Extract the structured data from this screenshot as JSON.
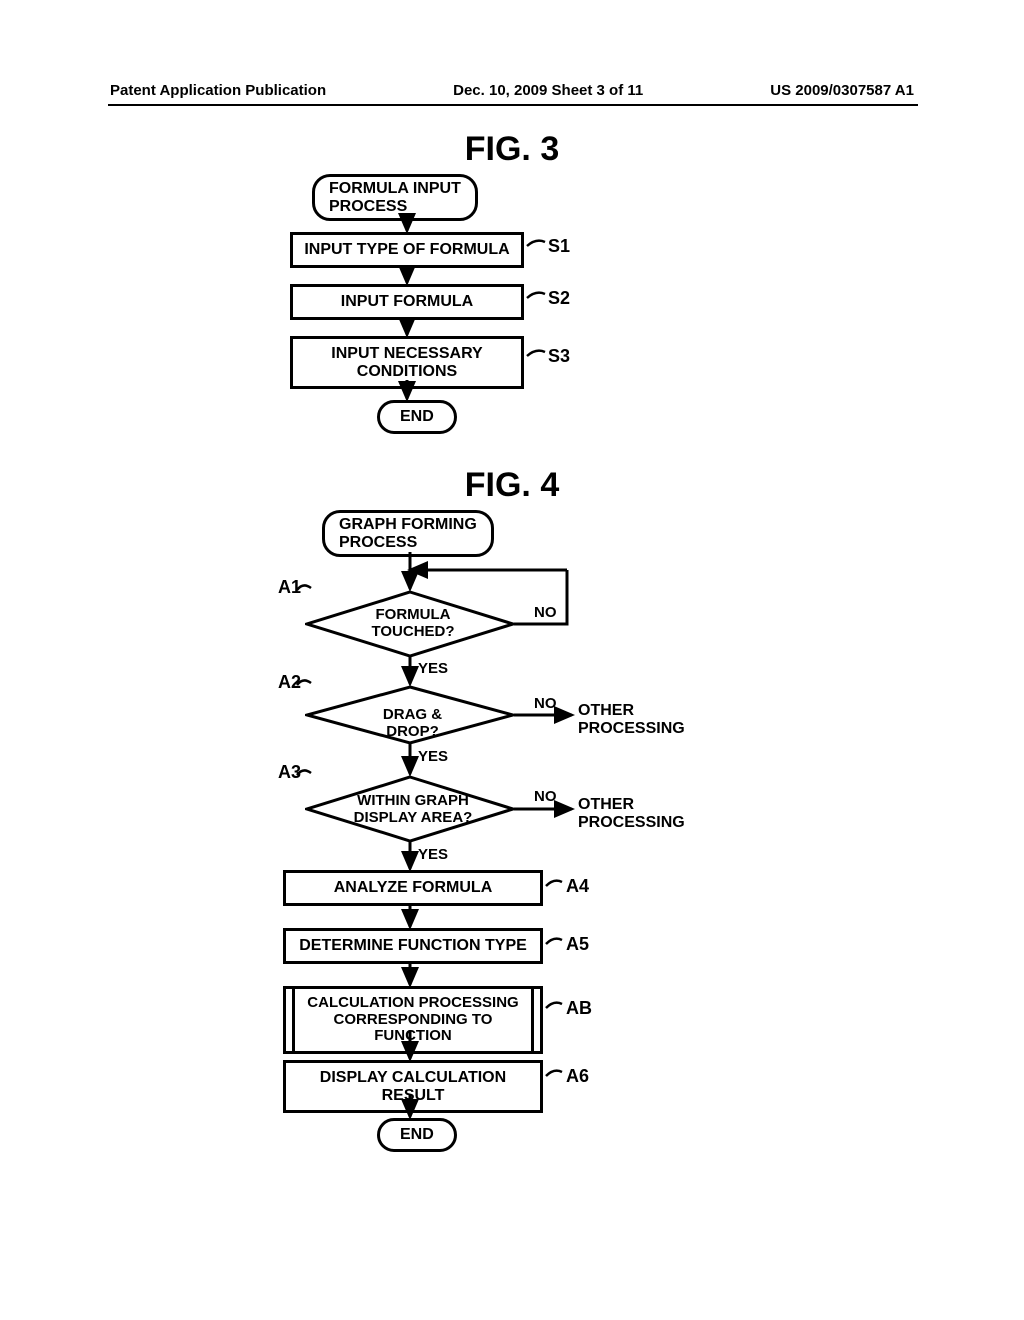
{
  "header": {
    "left": "Patent Application Publication",
    "center": "Dec. 10, 2009  Sheet 3 of 11",
    "right": "US 2009/0307587 A1"
  },
  "fig3": {
    "title": "FIG. 3",
    "start": "FORMULA INPUT\nPROCESS",
    "s1": {
      "text": "INPUT TYPE OF FORMULA",
      "ref": "S1"
    },
    "s2": {
      "text": "INPUT FORMULA",
      "ref": "S2"
    },
    "s3": {
      "text": "INPUT NECESSARY\nCONDITIONS",
      "ref": "S3"
    },
    "end": "END"
  },
  "fig4": {
    "title": "FIG. 4",
    "start": "GRAPH FORMING\nPROCESS",
    "a1": {
      "text": "FORMULA\nTOUCHED?",
      "ref": "A1",
      "yes": "YES",
      "no": "NO"
    },
    "a2": {
      "text": "DRAG & DROP?",
      "ref": "A2",
      "yes": "YES",
      "no": "NO",
      "nobranch": "OTHER\nPROCESSING"
    },
    "a3": {
      "text": "WITHIN GRAPH\nDISPLAY AREA?",
      "ref": "A3",
      "yes": "YES",
      "no": "NO",
      "nobranch": "OTHER\nPROCESSING"
    },
    "a4": {
      "text": "ANALYZE FORMULA",
      "ref": "A4"
    },
    "a5": {
      "text": "DETERMINE FUNCTION TYPE",
      "ref": "A5"
    },
    "ab": {
      "text": "CALCULATION PROCESSING\nCORRESPONDING TO FUNCTION",
      "ref": "AB"
    },
    "a6": {
      "text": "DISPLAY CALCULATION RESULT",
      "ref": "A6"
    },
    "end": "END"
  },
  "style": {
    "stroke": "#000000",
    "stroke_width": 3,
    "fill": "#ffffff",
    "font": "Arial",
    "title_font_size": 34,
    "node_font_size": 16,
    "ref_font_size": 18,
    "branch_font_size": 15
  }
}
